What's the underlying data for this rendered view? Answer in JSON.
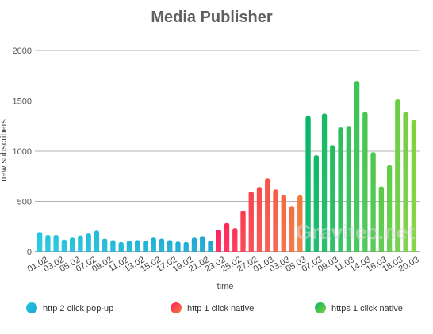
{
  "chart_data": {
    "type": "bar",
    "title": "Media Publisher",
    "xlabel": "time",
    "ylabel": "new subscribers",
    "ylim": [
      0,
      2000
    ],
    "yticks": [
      0,
      500,
      1000,
      1500,
      2000
    ],
    "grid": true,
    "legend_position": "bottom",
    "watermark": "Gravitec.net",
    "x_tick_labels": [
      "01.02",
      "03.02",
      "05.02",
      "07.02",
      "09.02",
      "11.02",
      "13.02",
      "15.02",
      "17.02",
      "19.02",
      "21.02",
      "23.02",
      "25.02",
      "27.02",
      "01.03",
      "03.03",
      "05.03",
      "07.03",
      "09.03",
      "11.03",
      "14.03",
      "16.03",
      "18.03",
      "20.03"
    ],
    "series": [
      {
        "name": "http 2 click pop-up",
        "colors": [
          "#22c6de",
          "#1aa6d2"
        ],
        "values": [
          195,
          165,
          165,
          120,
          140,
          160,
          180,
          210,
          130,
          115,
          95,
          110,
          115,
          110,
          140,
          130,
          115,
          100,
          95,
          140,
          155,
          110
        ]
      },
      {
        "name": "http 1 click native",
        "colors": [
          "#ff1f5a",
          "#f2783a"
        ],
        "values": [
          220,
          285,
          235,
          410,
          600,
          645,
          730,
          620,
          565,
          455,
          560
        ]
      },
      {
        "name": "https 1 click native",
        "colors": [
          "#05b66a",
          "#7ed23a"
        ],
        "values": [
          1350,
          960,
          1375,
          1060,
          1235,
          1250,
          1700,
          1390,
          990,
          650,
          860,
          1520,
          1390,
          1315
        ]
      }
    ]
  }
}
